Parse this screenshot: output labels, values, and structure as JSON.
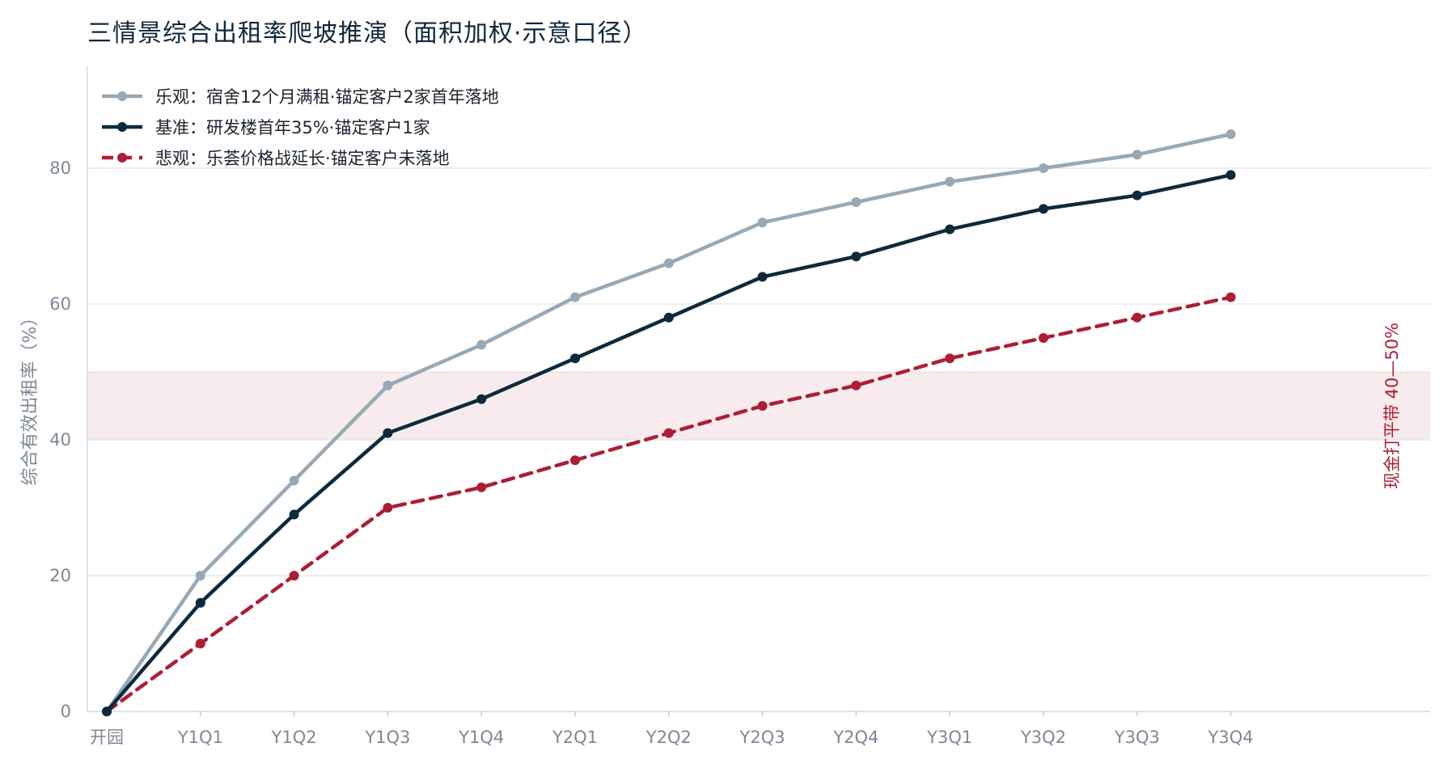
{
  "chart_data": {
    "type": "line",
    "title": "三情景综合出租率爬坡推演（面积加权·示意口径）",
    "ylabel": "综合有效出租率（%）",
    "xlabel": "",
    "categories": [
      "开园",
      "Y1Q1",
      "Y1Q2",
      "Y1Q3",
      "Y1Q4",
      "Y2Q1",
      "Y2Q2",
      "Y2Q3",
      "Y2Q4",
      "Y3Q1",
      "Y3Q2",
      "Y3Q3",
      "Y3Q4"
    ],
    "ylim": [
      0,
      95
    ],
    "yticks": [
      0,
      20,
      40,
      60,
      80
    ],
    "grid": "horizontal",
    "legend_position": "top-left",
    "series": [
      {
        "name": "乐观：宿舍12个月满租·锚定客户2家首年落地",
        "color": "#97a8b6",
        "style": "solid",
        "values": [
          0,
          20,
          34,
          48,
          54,
          61,
          66,
          72,
          75,
          78,
          80,
          82,
          85
        ]
      },
      {
        "name": "基准：研发楼首年35%·锚定客户1家",
        "color": "#0d2a3d",
        "style": "solid",
        "values": [
          0,
          16,
          29,
          41,
          46,
          52,
          58,
          64,
          67,
          71,
          74,
          76,
          79
        ]
      },
      {
        "name": "悲观：乐荟价格战延长·锚定客户未落地",
        "color": "#ad1e35",
        "style": "dashed",
        "values": [
          0,
          10,
          20,
          30,
          33,
          37,
          41,
          45,
          48,
          52,
          55,
          58,
          61
        ]
      }
    ],
    "bands": [
      {
        "label": "现金打平带 40—50%",
        "from": 40,
        "to": 50,
        "color": "#ad1e35"
      }
    ]
  }
}
